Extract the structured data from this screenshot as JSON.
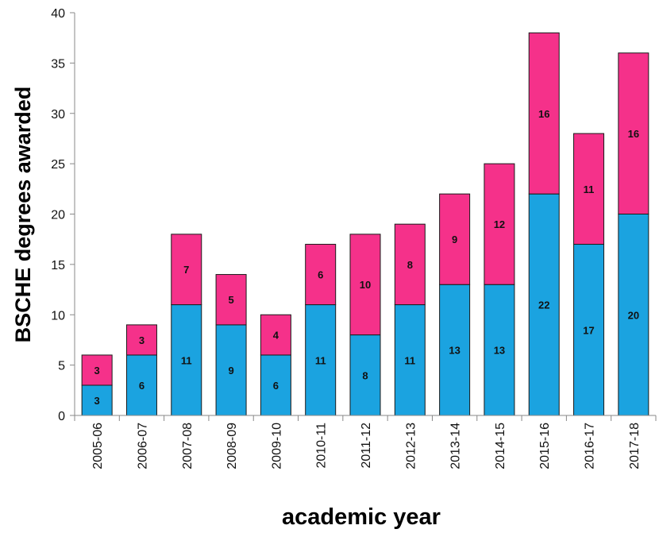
{
  "chart_data": {
    "type": "bar",
    "stacked": true,
    "title": "",
    "xlabel": "academic year",
    "ylabel": "BSCHE degrees awarded",
    "ylim": [
      0,
      40
    ],
    "yticks": [
      0,
      5,
      10,
      15,
      20,
      25,
      30,
      35,
      40
    ],
    "grid": false,
    "categories": [
      "2005-06",
      "2006-07",
      "2007-08",
      "2008-09",
      "2009-10",
      "2010-11",
      "2011-12",
      "2012-13",
      "2013-14",
      "2014-15",
      "2015-16",
      "2016-17",
      "2017-18"
    ],
    "series": [
      {
        "color": "#1BA3E0",
        "values": [
          3,
          6,
          11,
          9,
          6,
          11,
          8,
          11,
          13,
          13,
          22,
          17,
          20
        ]
      },
      {
        "color": "#F5318A",
        "values": [
          3,
          3,
          7,
          5,
          4,
          6,
          10,
          8,
          9,
          12,
          16,
          11,
          16
        ]
      }
    ]
  }
}
